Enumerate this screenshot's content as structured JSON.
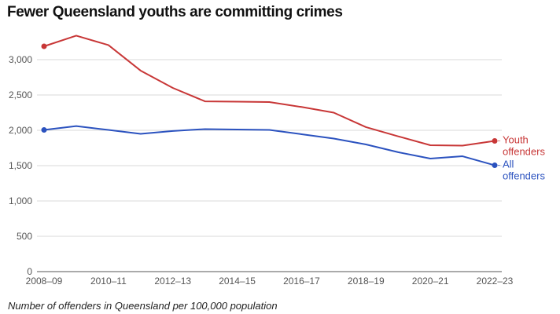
{
  "chart_data": {
    "type": "line",
    "title": "Fewer Queensland youths are committing crimes",
    "caption": "Number of offenders in Queensland per 100,000 population",
    "xlabel": "",
    "ylabel": "",
    "x": [
      "2008–09",
      "2009–10",
      "2010–11",
      "2011–12",
      "2012–13",
      "2013–14",
      "2014–15",
      "2015–16",
      "2016–17",
      "2017–18",
      "2018–19",
      "2019–20",
      "2020–21",
      "2021–22",
      "2022–23"
    ],
    "x_tick_labels": [
      "2008–09",
      "2010–11",
      "2012–13",
      "2014–15",
      "2016–17",
      "2018–19",
      "2020–21",
      "2022–23"
    ],
    "y_ticks": [
      0,
      500,
      1000,
      1500,
      2000,
      2500,
      3000
    ],
    "y_tick_labels": [
      "0",
      "500",
      "1,000",
      "1,500",
      "2,000",
      "2,500",
      "3,000"
    ],
    "ylim": [
      0,
      3400
    ],
    "grid": true,
    "legend_placement": "right-end-labels",
    "series": [
      {
        "name": "Youth offenders",
        "label_lines": [
          "Youth",
          "offenders"
        ],
        "color": "#c83737",
        "values": [
          3189,
          3340,
          3206,
          2845,
          2600,
          2410,
          2405,
          2400,
          2330,
          2250,
          2045,
          1915,
          1789,
          1783,
          1850
        ]
      },
      {
        "name": "All offenders",
        "label_lines": [
          "All",
          "offenders"
        ],
        "color": "#2b52bf",
        "values": [
          2005,
          2060,
          2005,
          1950,
          1990,
          2017,
          2011,
          2005,
          1945,
          1883,
          1800,
          1690,
          1600,
          1633,
          1505
        ]
      }
    ]
  }
}
